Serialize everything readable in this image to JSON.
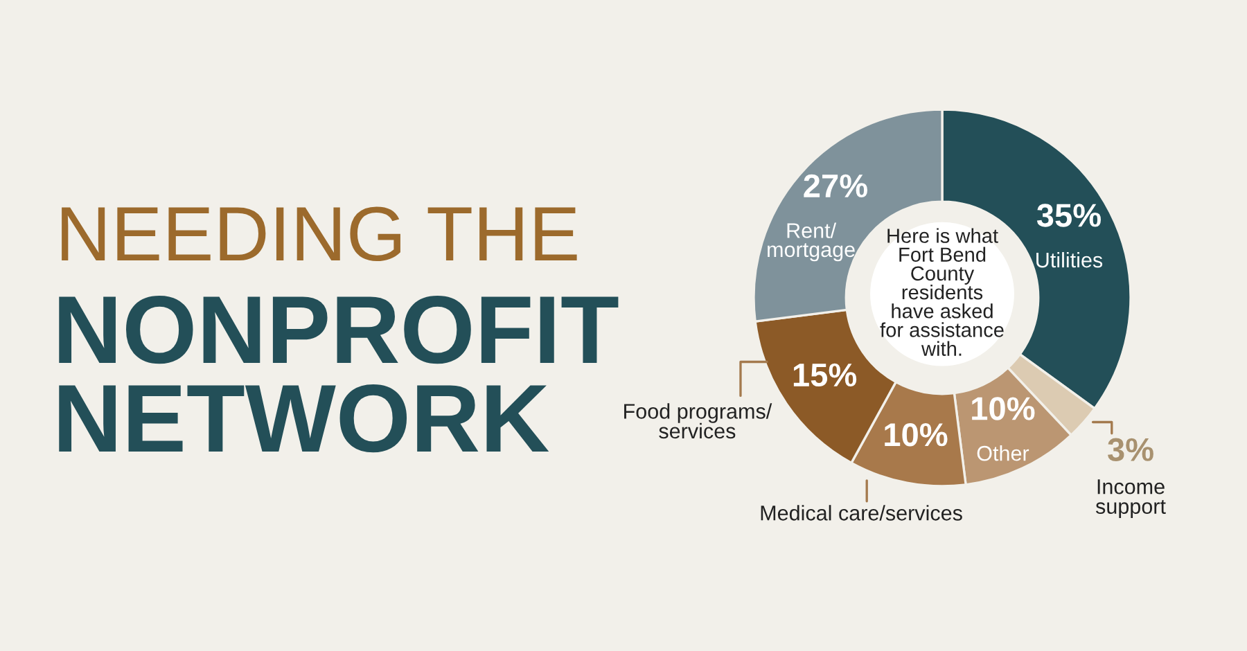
{
  "chart_data": {
    "type": "donut",
    "title": "NEEDING THE",
    "subtitle": "NONPROFIT NETWORK",
    "categories": [
      "Utilities",
      "Income\nsupport",
      "Other",
      "Medical care/services",
      "Food programs/\nservices",
      "Rent/\nmortgage"
    ],
    "values": [
      35,
      3,
      10,
      10,
      15,
      27
    ],
    "value_labels": [
      "35%",
      "3%",
      "10%",
      "10%",
      "15%",
      "27%"
    ],
    "colors": [
      "#234f58",
      "#dccbb2",
      "#bb9672",
      "#a8794b",
      "#8c5a27",
      "#7f929b"
    ],
    "annotations": [
      "Here is what\nFort Bend\nCounty\nresidents\nhave asked\nfor assistance\nwith."
    ],
    "legend": false
  }
}
